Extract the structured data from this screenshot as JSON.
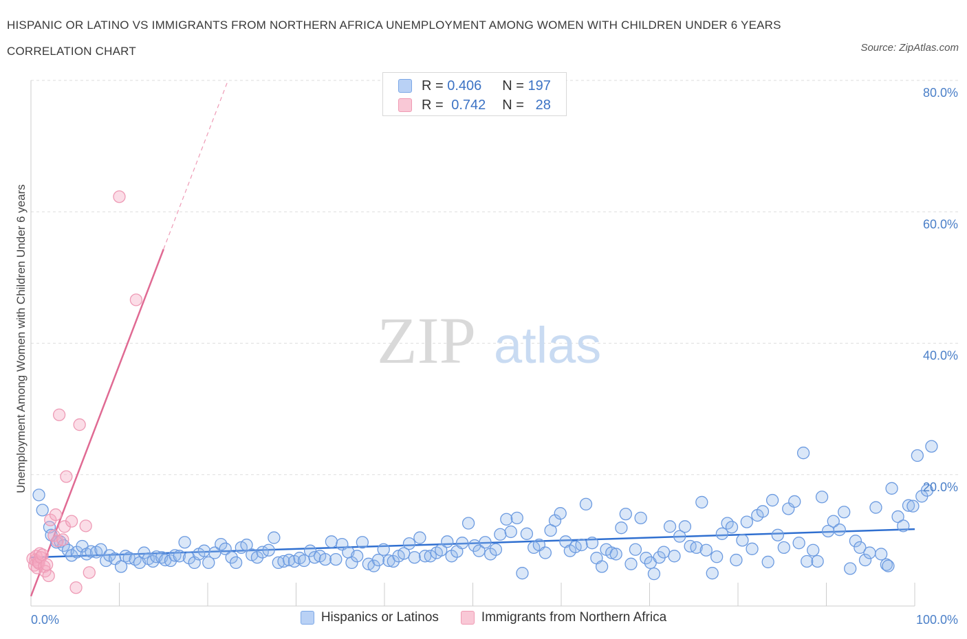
{
  "title": "HISPANIC OR LATINO VS IMMIGRANTS FROM NORTHERN AFRICA UNEMPLOYMENT AMONG WOMEN WITH CHILDREN UNDER 6 YEARS CORRELATION CHART",
  "source": "Source: ZipAtlas.com",
  "watermark": {
    "zip": "ZIP",
    "atlas": "atlas"
  },
  "legend": {
    "r_label": "R =",
    "n_label": "N =",
    "series": [
      {
        "r": "0.406",
        "n": "197",
        "color": "#7ba7e6",
        "fill": "#b9d1f5"
      },
      {
        "r": "0.742",
        "n": "28",
        "color": "#f09ab3",
        "fill": "#f9c8d6"
      }
    ]
  },
  "chart_data": {
    "type": "scatter",
    "title": "HISPANIC OR LATINO VS IMMIGRANTS FROM NORTHERN AFRICA UNEMPLOYMENT AMONG WOMEN WITH CHILDREN UNDER 6 YEARS CORRELATION CHART",
    "xlabel": "",
    "ylabel": "Unemployment Among Women with Children Under 6 years",
    "xlim": [
      0,
      100
    ],
    "ylim": [
      0,
      80
    ],
    "x_tick_labels": [
      "0.0%",
      "100.0%"
    ],
    "y_ticks": [
      20,
      40,
      60,
      80
    ],
    "y_tick_labels": [
      "20.0%",
      "40.0%",
      "60.0%",
      "80.0%"
    ],
    "grid": "horizontal dashed",
    "legend_position": "top-center",
    "series": [
      {
        "name": "Hispanics or Latinos",
        "color": "#5b8fdc",
        "trend": {
          "x": [
            0,
            100
          ],
          "y": [
            7.4,
            11.7
          ]
        },
        "points": [
          [
            0.9,
            16.9
          ],
          [
            1.3,
            14.6
          ],
          [
            2.1,
            12.0
          ],
          [
            2.3,
            10.8
          ],
          [
            2.9,
            9.7
          ],
          [
            3.3,
            9.8
          ],
          [
            3.7,
            9.2
          ],
          [
            4.2,
            8.5
          ],
          [
            4.6,
            7.7
          ],
          [
            5.2,
            8.2
          ],
          [
            5.8,
            9.1
          ],
          [
            6.3,
            7.9
          ],
          [
            6.8,
            8.3
          ],
          [
            7.4,
            8.2
          ],
          [
            7.9,
            8.6
          ],
          [
            8.5,
            6.9
          ],
          [
            8.9,
            7.7
          ],
          [
            9.5,
            7.2
          ],
          [
            10.2,
            6.0
          ],
          [
            10.7,
            7.6
          ],
          [
            11.1,
            7.3
          ],
          [
            11.8,
            7.1
          ],
          [
            12.3,
            6.6
          ],
          [
            12.8,
            8.1
          ],
          [
            13.3,
            7.2
          ],
          [
            13.8,
            6.8
          ],
          [
            14.2,
            7.5
          ],
          [
            14.8,
            7.4
          ],
          [
            15.2,
            7.0
          ],
          [
            15.8,
            6.9
          ],
          [
            16.3,
            7.7
          ],
          [
            16.8,
            7.6
          ],
          [
            17.4,
            9.7
          ],
          [
            17.9,
            7.3
          ],
          [
            18.5,
            6.6
          ],
          [
            19.0,
            7.9
          ],
          [
            19.6,
            8.4
          ],
          [
            20.1,
            6.6
          ],
          [
            20.8,
            8.1
          ],
          [
            21.5,
            9.4
          ],
          [
            22.0,
            8.7
          ],
          [
            22.7,
            7.4
          ],
          [
            23.2,
            6.6
          ],
          [
            23.8,
            8.9
          ],
          [
            24.4,
            9.3
          ],
          [
            25.0,
            7.8
          ],
          [
            25.6,
            7.4
          ],
          [
            26.2,
            8.2
          ],
          [
            26.9,
            8.5
          ],
          [
            27.5,
            10.4
          ],
          [
            28.0,
            6.6
          ],
          [
            28.6,
            6.8
          ],
          [
            29.2,
            7.0
          ],
          [
            29.8,
            6.8
          ],
          [
            30.4,
            7.3
          ],
          [
            30.9,
            6.9
          ],
          [
            31.6,
            8.4
          ],
          [
            32.1,
            7.4
          ],
          [
            32.7,
            7.6
          ],
          [
            33.3,
            7.1
          ],
          [
            34.0,
            9.8
          ],
          [
            34.5,
            7.1
          ],
          [
            35.2,
            9.4
          ],
          [
            35.9,
            8.2
          ],
          [
            36.3,
            6.6
          ],
          [
            36.9,
            7.6
          ],
          [
            37.5,
            9.7
          ],
          [
            38.2,
            6.4
          ],
          [
            38.8,
            6.1
          ],
          [
            39.3,
            7.0
          ],
          [
            39.9,
            8.6
          ],
          [
            40.5,
            6.9
          ],
          [
            41.0,
            6.8
          ],
          [
            41.6,
            7.6
          ],
          [
            42.2,
            8.0
          ],
          [
            42.8,
            9.5
          ],
          [
            43.4,
            7.4
          ],
          [
            44.0,
            10.4
          ],
          [
            44.6,
            7.6
          ],
          [
            45.2,
            7.6
          ],
          [
            45.9,
            8.1
          ],
          [
            46.4,
            8.5
          ],
          [
            47.1,
            9.8
          ],
          [
            47.6,
            7.6
          ],
          [
            48.2,
            8.3
          ],
          [
            48.8,
            9.6
          ],
          [
            49.5,
            12.6
          ],
          [
            50.2,
            9.2
          ],
          [
            50.7,
            8.4
          ],
          [
            51.4,
            9.7
          ],
          [
            52.0,
            7.9
          ],
          [
            52.6,
            8.6
          ],
          [
            53.1,
            10.9
          ],
          [
            53.8,
            13.2
          ],
          [
            54.3,
            11.3
          ],
          [
            55.0,
            13.4
          ],
          [
            55.6,
            5.0
          ],
          [
            56.1,
            11.0
          ],
          [
            56.9,
            8.9
          ],
          [
            57.5,
            9.3
          ],
          [
            58.2,
            8.1
          ],
          [
            58.8,
            11.5
          ],
          [
            59.3,
            13.0
          ],
          [
            59.9,
            14.1
          ],
          [
            60.5,
            9.8
          ],
          [
            61.0,
            8.4
          ],
          [
            61.6,
            9.0
          ],
          [
            62.3,
            9.3
          ],
          [
            62.8,
            15.5
          ],
          [
            63.5,
            9.6
          ],
          [
            64.0,
            7.3
          ],
          [
            64.6,
            6.0
          ],
          [
            65.1,
            8.6
          ],
          [
            65.7,
            8.1
          ],
          [
            66.2,
            7.9
          ],
          [
            66.8,
            11.9
          ],
          [
            67.3,
            14.0
          ],
          [
            67.9,
            6.4
          ],
          [
            68.4,
            8.6
          ],
          [
            69.0,
            13.4
          ],
          [
            69.6,
            7.3
          ],
          [
            70.1,
            6.6
          ],
          [
            70.5,
            4.9
          ],
          [
            71.1,
            7.4
          ],
          [
            71.6,
            8.2
          ],
          [
            72.3,
            12.1
          ],
          [
            72.8,
            7.6
          ],
          [
            73.4,
            10.6
          ],
          [
            74.0,
            12.1
          ],
          [
            74.6,
            9.1
          ],
          [
            75.3,
            8.9
          ],
          [
            75.9,
            15.8
          ],
          [
            76.4,
            8.5
          ],
          [
            77.1,
            5.0
          ],
          [
            77.6,
            7.5
          ],
          [
            78.2,
            11.0
          ],
          [
            78.8,
            12.6
          ],
          [
            79.3,
            12.0
          ],
          [
            79.8,
            7.0
          ],
          [
            80.5,
            10.0
          ],
          [
            81.0,
            12.8
          ],
          [
            81.6,
            8.7
          ],
          [
            82.2,
            13.8
          ],
          [
            82.8,
            14.4
          ],
          [
            83.4,
            6.7
          ],
          [
            83.9,
            16.1
          ],
          [
            84.5,
            10.8
          ],
          [
            85.2,
            8.9
          ],
          [
            85.7,
            14.8
          ],
          [
            86.4,
            15.9
          ],
          [
            86.9,
            9.6
          ],
          [
            87.4,
            23.3
          ],
          [
            87.8,
            6.8
          ],
          [
            88.5,
            8.5
          ],
          [
            89.0,
            6.8
          ],
          [
            89.5,
            16.6
          ],
          [
            90.2,
            11.4
          ],
          [
            90.8,
            12.9
          ],
          [
            91.5,
            11.6
          ],
          [
            92.0,
            14.3
          ],
          [
            92.7,
            5.7
          ],
          [
            93.3,
            9.9
          ],
          [
            93.8,
            8.9
          ],
          [
            94.4,
            7.0
          ],
          [
            94.9,
            8.1
          ],
          [
            95.6,
            15.0
          ],
          [
            96.2,
            7.9
          ],
          [
            96.8,
            6.3
          ],
          [
            97.0,
            6.1
          ],
          [
            97.4,
            17.9
          ],
          [
            98.1,
            13.6
          ],
          [
            98.7,
            12.2
          ],
          [
            99.3,
            15.3
          ],
          [
            99.8,
            15.2
          ],
          [
            100.3,
            22.9
          ],
          [
            100.8,
            16.7
          ],
          [
            101.4,
            17.6
          ],
          [
            101.9,
            24.3
          ]
        ]
      },
      {
        "name": "Immigrants from Northern Africa",
        "color": "#ee84a6",
        "trend": {
          "x": [
            0,
            15.0
          ],
          "y": [
            1.5,
            54.3
          ],
          "dashed_to": {
            "x": 22.3,
            "y": 80.0
          }
        },
        "points": [
          [
            0.2,
            7.2
          ],
          [
            0.4,
            6.2
          ],
          [
            0.5,
            7.0
          ],
          [
            0.6,
            7.6
          ],
          [
            0.7,
            5.8
          ],
          [
            0.8,
            6.7
          ],
          [
            0.9,
            6.5
          ],
          [
            1.0,
            8.0
          ],
          [
            1.1,
            7.4
          ],
          [
            1.3,
            7.8
          ],
          [
            1.5,
            6.0
          ],
          [
            1.6,
            5.3
          ],
          [
            1.8,
            6.3
          ],
          [
            2.0,
            4.6
          ],
          [
            2.2,
            13.1
          ],
          [
            2.6,
            10.7
          ],
          [
            2.8,
            13.9
          ],
          [
            3.0,
            9.9
          ],
          [
            3.2,
            29.1
          ],
          [
            3.6,
            10.1
          ],
          [
            3.8,
            12.1
          ],
          [
            4.0,
            19.7
          ],
          [
            4.6,
            12.9
          ],
          [
            5.1,
            2.8
          ],
          [
            5.5,
            27.6
          ],
          [
            6.2,
            12.2
          ],
          [
            6.6,
            5.1
          ],
          [
            10.0,
            62.3
          ],
          [
            11.9,
            46.6
          ]
        ]
      }
    ]
  },
  "bottom_legend": [
    "Hispanics or Latinos",
    "Immigrants from Northern Africa"
  ]
}
